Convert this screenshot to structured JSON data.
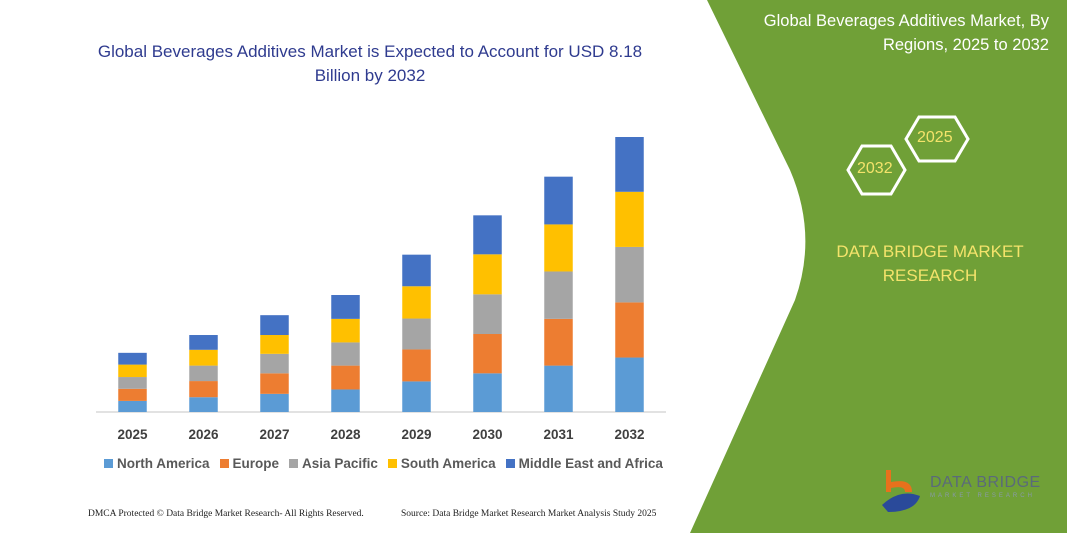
{
  "header": {
    "title": "Global Beverages Additives Market is Expected to Account for USD 8.18 Billion by 2032"
  },
  "side_panel": {
    "title": "Global Beverages Additives Market, By Regions, 2025 to 2032",
    "hex_start": "2032",
    "hex_end": "2025",
    "brand": "DATA BRIDGE MARKET RESEARCH",
    "logo_text": "DATA BRIDGE",
    "logo_sub": "MARKET RESEARCH",
    "color": "#70a037"
  },
  "footer": {
    "left": "DMCA Protected © Data Bridge Market Research- All Rights Reserved.",
    "right": "Source: Data Bridge Market Research  Market Analysis Study 2025"
  },
  "chart_data": {
    "type": "bar",
    "stacked": true,
    "title": "Global Beverages Additives Market is Expected to Account for USD 8.18 Billion by 2032",
    "xlabel": "",
    "ylabel": "",
    "ylim": [
      0,
      8.18
    ],
    "grid": false,
    "legend": "bottom",
    "categories": [
      "2025",
      "2026",
      "2027",
      "2028",
      "2029",
      "2030",
      "2031",
      "2032"
    ],
    "series": [
      {
        "name": "North America",
        "color": "#5b9bd5",
        "values": [
          0.33,
          0.44,
          0.54,
          0.67,
          0.91,
          1.15,
          1.38,
          1.62
        ]
      },
      {
        "name": "Europe",
        "color": "#ed7d31",
        "values": [
          0.36,
          0.48,
          0.61,
          0.71,
          0.95,
          1.17,
          1.39,
          1.64
        ]
      },
      {
        "name": "Asia Pacific",
        "color": "#a5a5a5",
        "values": [
          0.35,
          0.46,
          0.58,
          0.69,
          0.92,
          1.18,
          1.41,
          1.65
        ]
      },
      {
        "name": "South America",
        "color": "#ffc000",
        "values": [
          0.37,
          0.47,
          0.56,
          0.7,
          0.96,
          1.19,
          1.4,
          1.64
        ]
      },
      {
        "name": "Middle East and Africa",
        "color": "#4472c4",
        "values": [
          0.35,
          0.44,
          0.59,
          0.71,
          0.94,
          1.16,
          1.42,
          1.63
        ]
      }
    ]
  }
}
